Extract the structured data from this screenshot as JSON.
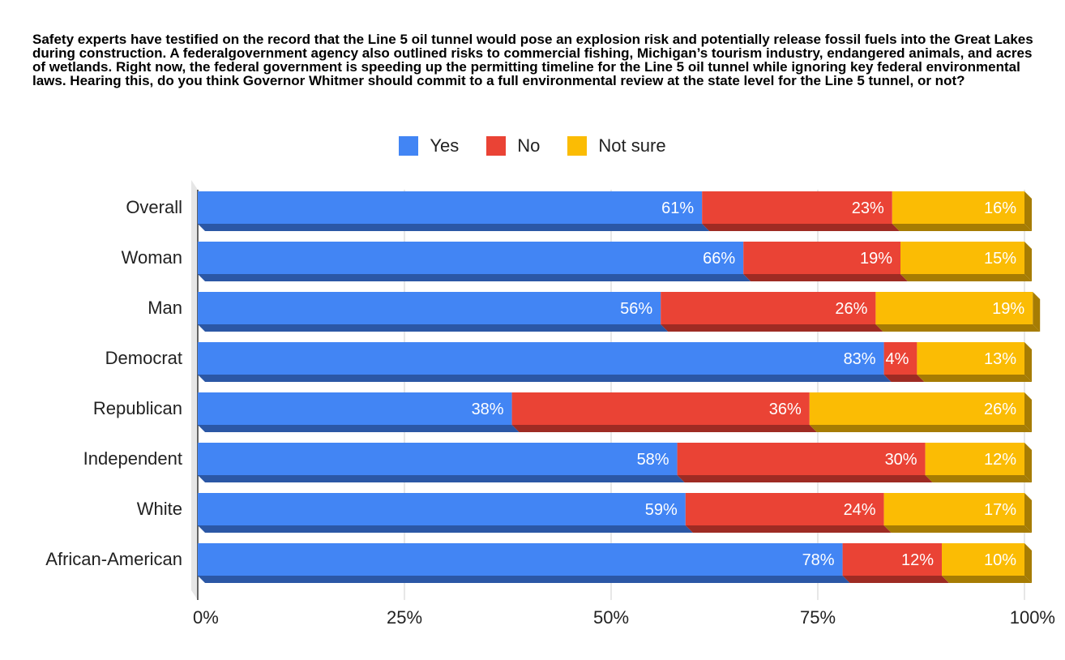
{
  "chart_data": {
    "type": "bar",
    "orientation": "horizontal",
    "stacked": true,
    "percent": true,
    "title": "Safety experts have testified on the record that the Line 5 oil tunnel would pose an explosion risk and potentially release fossil fuels into the Great Lakes during construction. A federalgovernment agency also outlined risks to commercial fishing, Michigan’s tourism industry, endangered animals, and acres of wetlands. Right now, the federal government is speeding up the permitting timeline for the Line 5 oil tunnel while ignoring key federal environmental laws. Hearing this, do you think Governor Whitmer should commit to a full environmental review at the state level for the Line 5 tunnel, or not?",
    "categories": [
      "Overall",
      "Woman",
      "Man",
      "Democrat",
      "Republican",
      "Independent",
      "White",
      "African-American"
    ],
    "series": [
      {
        "name": "Yes",
        "color": "#4285f4",
        "shade": "#2b57a5",
        "values": [
          61,
          66,
          56,
          83,
          38,
          58,
          59,
          78
        ]
      },
      {
        "name": "No",
        "color": "#ea4335",
        "shade": "#9e2b23",
        "values": [
          23,
          19,
          26,
          4,
          36,
          30,
          24,
          12
        ]
      },
      {
        "name": "Not sure",
        "color": "#fbbc04",
        "shade": "#a67c03",
        "values": [
          16,
          15,
          19,
          13,
          26,
          12,
          17,
          10
        ]
      }
    ],
    "data_labels": [
      [
        "61%",
        "23%",
        "16%"
      ],
      [
        "66%",
        "19%",
        "15%"
      ],
      [
        "56%",
        "26%",
        "19%"
      ],
      [
        "83%",
        "4%",
        "13%"
      ],
      [
        "38%",
        "36%",
        "26%"
      ],
      [
        "58%",
        "30%",
        "12%"
      ],
      [
        "59%",
        "24%",
        "17%"
      ],
      [
        "78%",
        "12%",
        "10%"
      ]
    ],
    "x_ticks": [
      "0%",
      "25%",
      "50%",
      "75%",
      "100%"
    ],
    "xlim": [
      0,
      100
    ],
    "grid": true,
    "legend_position": "top-center",
    "style_3d": true
  }
}
